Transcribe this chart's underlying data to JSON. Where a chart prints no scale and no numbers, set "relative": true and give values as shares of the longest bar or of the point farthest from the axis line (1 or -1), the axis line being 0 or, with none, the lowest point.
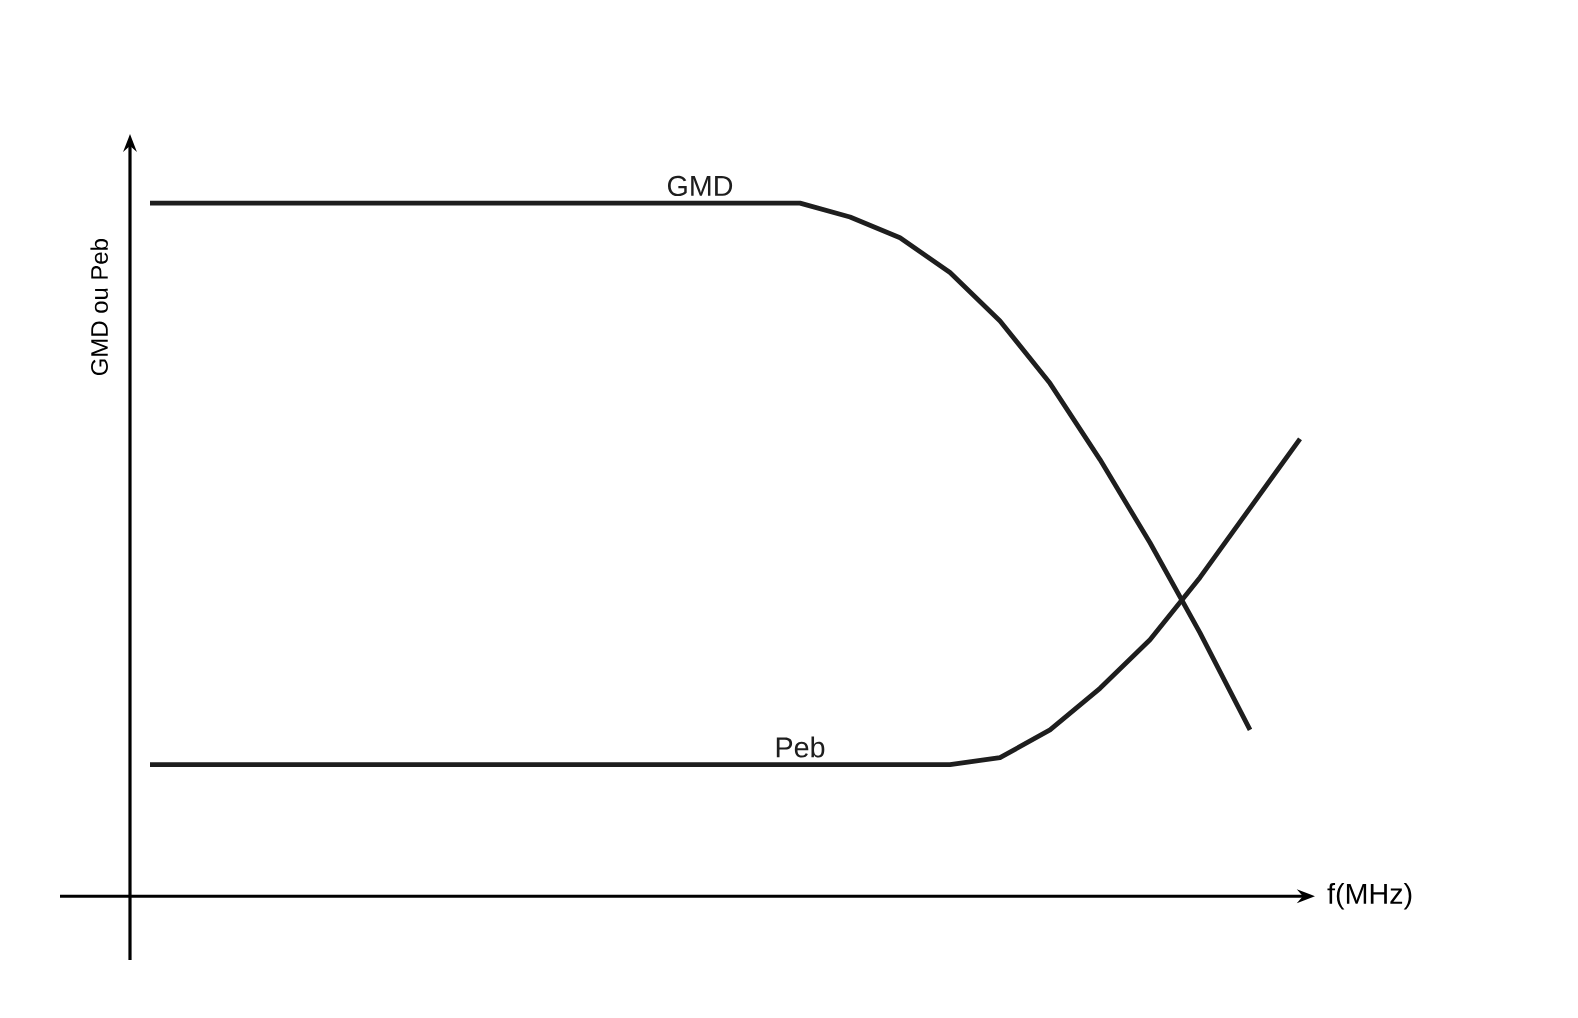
{
  "chart_data": {
    "type": "line",
    "relative": true,
    "xlabel": "f(MHz)",
    "ylabel": "GMD ou Peb",
    "categories": [
      null,
      null,
      null,
      null,
      null,
      null,
      null,
      null,
      null,
      null,
      null,
      null,
      null,
      null,
      null,
      null,
      null,
      null,
      null,
      null,
      null,
      null,
      null,
      null
    ],
    "series": [
      {
        "name": "GMD",
        "color": "#1e1e1e",
        "values": [
          1.0,
          1.0,
          1.0,
          1.0,
          1.0,
          1.0,
          1.0,
          1.0,
          1.0,
          1.0,
          1.0,
          1.0,
          1.0,
          1.0,
          0.98,
          0.95,
          0.9,
          0.83,
          0.74,
          0.63,
          0.51,
          0.38,
          0.24,
          null
        ]
      },
      {
        "name": "Peb",
        "color": "#1e1e1e",
        "values": [
          0.19,
          0.19,
          0.19,
          0.19,
          0.19,
          0.19,
          0.19,
          0.19,
          0.19,
          0.19,
          0.19,
          0.19,
          0.19,
          0.19,
          0.19,
          0.19,
          0.19,
          0.2,
          0.24,
          0.3,
          0.37,
          0.46,
          0.56,
          0.66
        ]
      }
    ]
  }
}
